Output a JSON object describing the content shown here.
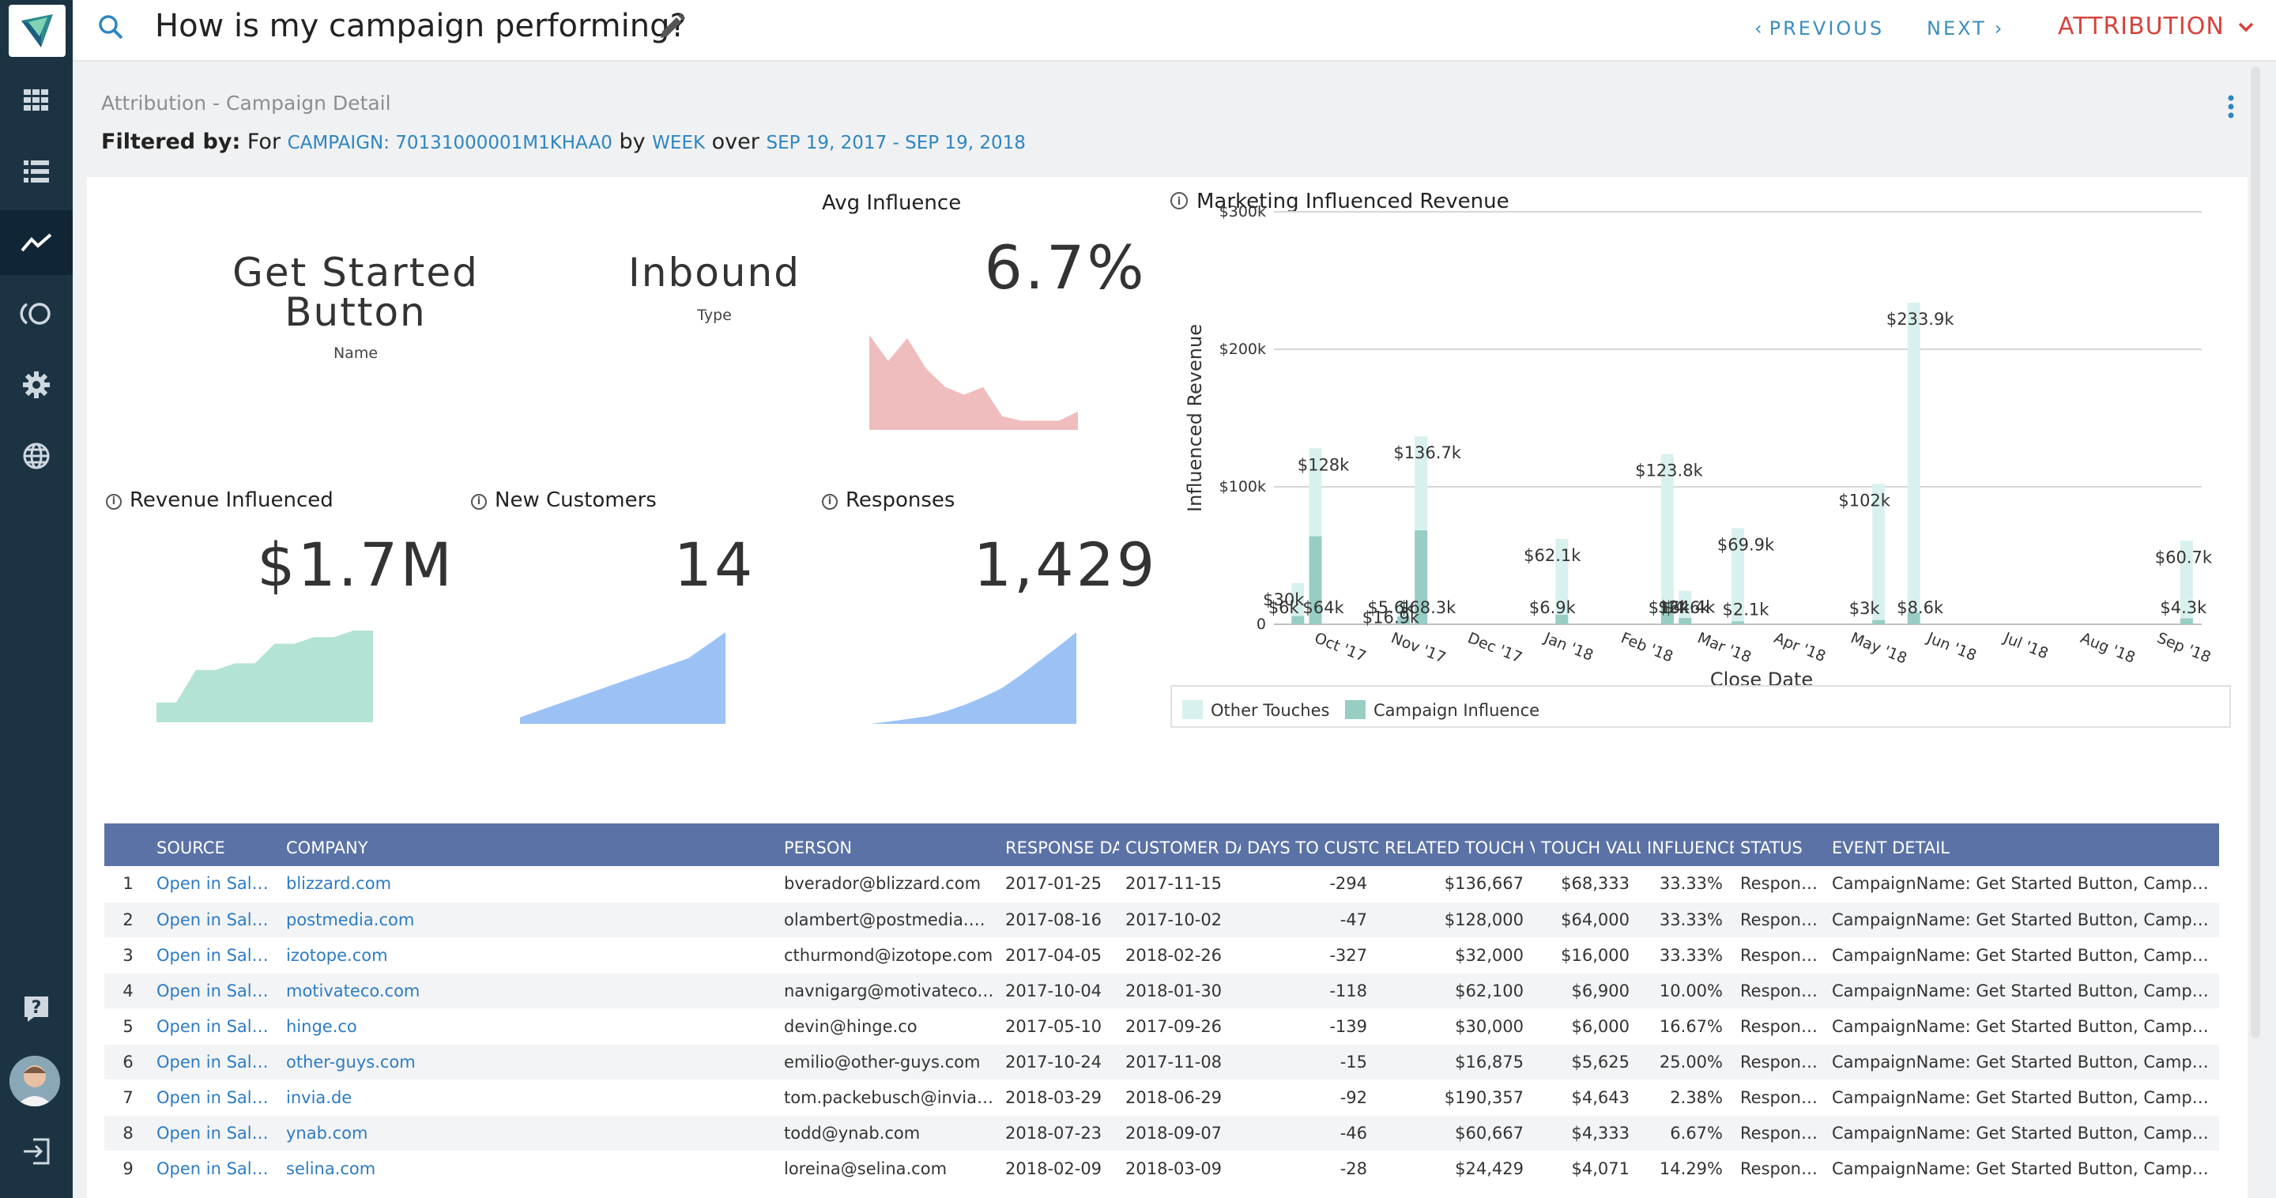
{
  "header": {
    "title": "How is my campaign performing?",
    "previous_label": "PREVIOUS",
    "next_label": "NEXT",
    "attribution_label": "ATTRIBUTION"
  },
  "subheader": {
    "report_label": "Attribution - Campaign Detail",
    "filtered_by_label": "Filtered by:",
    "for_text": "For",
    "campaign_value": "CAMPAIGN: 70131000001M1KHAA0",
    "by_text": "by",
    "granularity_value": "WEEK",
    "over_text": "over",
    "date_range_value": "SEP 19, 2017 - SEP 19, 2018"
  },
  "summary": {
    "name_line1": "Get Started",
    "name_line2": "Button",
    "name_caption": "Name",
    "type_value": "Inbound",
    "type_caption": "Type",
    "avg_influence_title": "Avg Influence",
    "avg_influence_value": "6.7%"
  },
  "metrics": {
    "revenue_title": "Revenue Influenced",
    "revenue_value": "$1.7M",
    "customers_title": "New Customers",
    "customers_value": "14",
    "responses_title": "Responses",
    "responses_value": "1,429"
  },
  "chart_data": {
    "type": "bar",
    "title": "Marketing Influenced Revenue",
    "xlabel": "Close Date",
    "ylabel": "Influenced Revenue",
    "ylim": [
      0,
      300
    ],
    "yticks": [
      "0",
      "$100k",
      "$200k",
      "$300k"
    ],
    "month_labels": [
      "Oct '17",
      "Nov '17",
      "Dec '17",
      "Jan '18",
      "Feb '18",
      "Mar '18",
      "Apr '18",
      "May '18",
      "Jun '18",
      "Jul '18",
      "Aug '18",
      "Sep '18"
    ],
    "legend": [
      "Other Touches",
      "Campaign Influence"
    ],
    "series": [
      {
        "name": "Other Touches",
        "color": "#d8f1ef",
        "values": [
          30,
          128,
          16.9,
          136.7,
          62.1,
          123.8,
          24.4,
          69.9,
          102,
          233.9,
          60.7
        ]
      },
      {
        "name": "Campaign Influence",
        "color": "#98cdc4",
        "values": [
          6,
          64,
          5.6,
          68.3,
          6.9,
          16,
          4.6,
          2.1,
          3,
          8.6,
          4.3
        ]
      }
    ],
    "other_labels": [
      "$30k",
      "$128k",
      "$16.9k",
      "$136.7k",
      "$62.1k",
      "$123.8k",
      "$24.4k",
      "$69.9k",
      "$102k",
      "$233.9k",
      "$60.7k"
    ],
    "campaign_labels": [
      "$6k",
      "$64k",
      "$5.6k",
      "$68.3k",
      "$6.9k",
      "$16k",
      "$4.6k",
      "$2.1k",
      "$3k",
      "$8.6k",
      "$4.3k"
    ]
  },
  "sparklines": {
    "avg_influence": [
      6.2,
      4.5,
      6.0,
      4.0,
      2.8,
      2.3,
      2.8,
      0.9,
      0.6,
      0.6,
      0.6,
      1.2
    ],
    "revenue": [
      0.3,
      0.3,
      0.8,
      0.8,
      0.9,
      0.9,
      1.2,
      1.2,
      1.3,
      1.3,
      1.4,
      1.4
    ],
    "customers": [
      1,
      2,
      3,
      4,
      5,
      6,
      7,
      8,
      9,
      10,
      12,
      14
    ],
    "responses": [
      5,
      40,
      80,
      120,
      200,
      300,
      420,
      560,
      760,
      980,
      1200,
      1429
    ]
  },
  "table": {
    "columns": [
      "SOURCE",
      "COMPANY",
      "PERSON",
      "RESPONSE DATE",
      "CUSTOMER DATE",
      "DAYS TO CUSTOMER",
      "RELATED TOUCH VALUE",
      "TOUCH VALUE",
      "INFLUENCE",
      "STATUS",
      "EVENT DETAIL"
    ],
    "rows": [
      [
        "1",
        "Open in Salesforce",
        "blizzard.com",
        "bverador@blizzard.com",
        "2017-01-25",
        "2017-11-15",
        "-294",
        "$136,667",
        "$68,333",
        "33.33%",
        "Responded",
        "CampaignName: Get Started Button, Campaign..."
      ],
      [
        "2",
        "Open in Salesforce",
        "postmedia.com",
        "olambert@postmedia.com",
        "2017-08-16",
        "2017-10-02",
        "-47",
        "$128,000",
        "$64,000",
        "33.33%",
        "Responded",
        "CampaignName: Get Started Button, Campaign..."
      ],
      [
        "3",
        "Open in Salesforce",
        "izotope.com",
        "cthurmond@izotope.com",
        "2017-04-05",
        "2018-02-26",
        "-327",
        "$32,000",
        "$16,000",
        "33.33%",
        "Responded",
        "CampaignName: Get Started Button, Campaign..."
      ],
      [
        "4",
        "Open in Salesforce",
        "motivateco.com",
        "navnigarg@motivateco.com",
        "2017-10-04",
        "2018-01-30",
        "-118",
        "$62,100",
        "$6,900",
        "10.00%",
        "Responded",
        "CampaignName: Get Started Button, Campaign..."
      ],
      [
        "5",
        "Open in Salesforce",
        "hinge.co",
        "devin@hinge.co",
        "2017-05-10",
        "2017-09-26",
        "-139",
        "$30,000",
        "$6,000",
        "16.67%",
        "Responded",
        "CampaignName: Get Started Button, Campaign..."
      ],
      [
        "6",
        "Open in Salesforce",
        "other-guys.com",
        "emilio@other-guys.com",
        "2017-10-24",
        "2017-11-08",
        "-15",
        "$16,875",
        "$5,625",
        "25.00%",
        "Responded",
        "CampaignName: Get Started Button, Campaign..."
      ],
      [
        "7",
        "Open in Salesforce",
        "invia.de",
        "tom.packebusch@invia.de",
        "2018-03-29",
        "2018-06-29",
        "-92",
        "$190,357",
        "$4,643",
        "2.38%",
        "Responded",
        "CampaignName: Get Started Button, Campaign..."
      ],
      [
        "8",
        "Open in Salesforce",
        "ynab.com",
        "todd@ynab.com",
        "2018-07-23",
        "2018-09-07",
        "-46",
        "$60,667",
        "$4,333",
        "6.67%",
        "Responded",
        "CampaignName: Get Started Button, Campaign..."
      ],
      [
        "9",
        "Open in Salesforce",
        "selina.com",
        "loreina@selina.com",
        "2018-02-09",
        "2018-03-09",
        "-28",
        "$24,429",
        "$4,071",
        "14.29%",
        "Responded",
        "CampaignName: Get Started Button, Campaign..."
      ]
    ]
  }
}
